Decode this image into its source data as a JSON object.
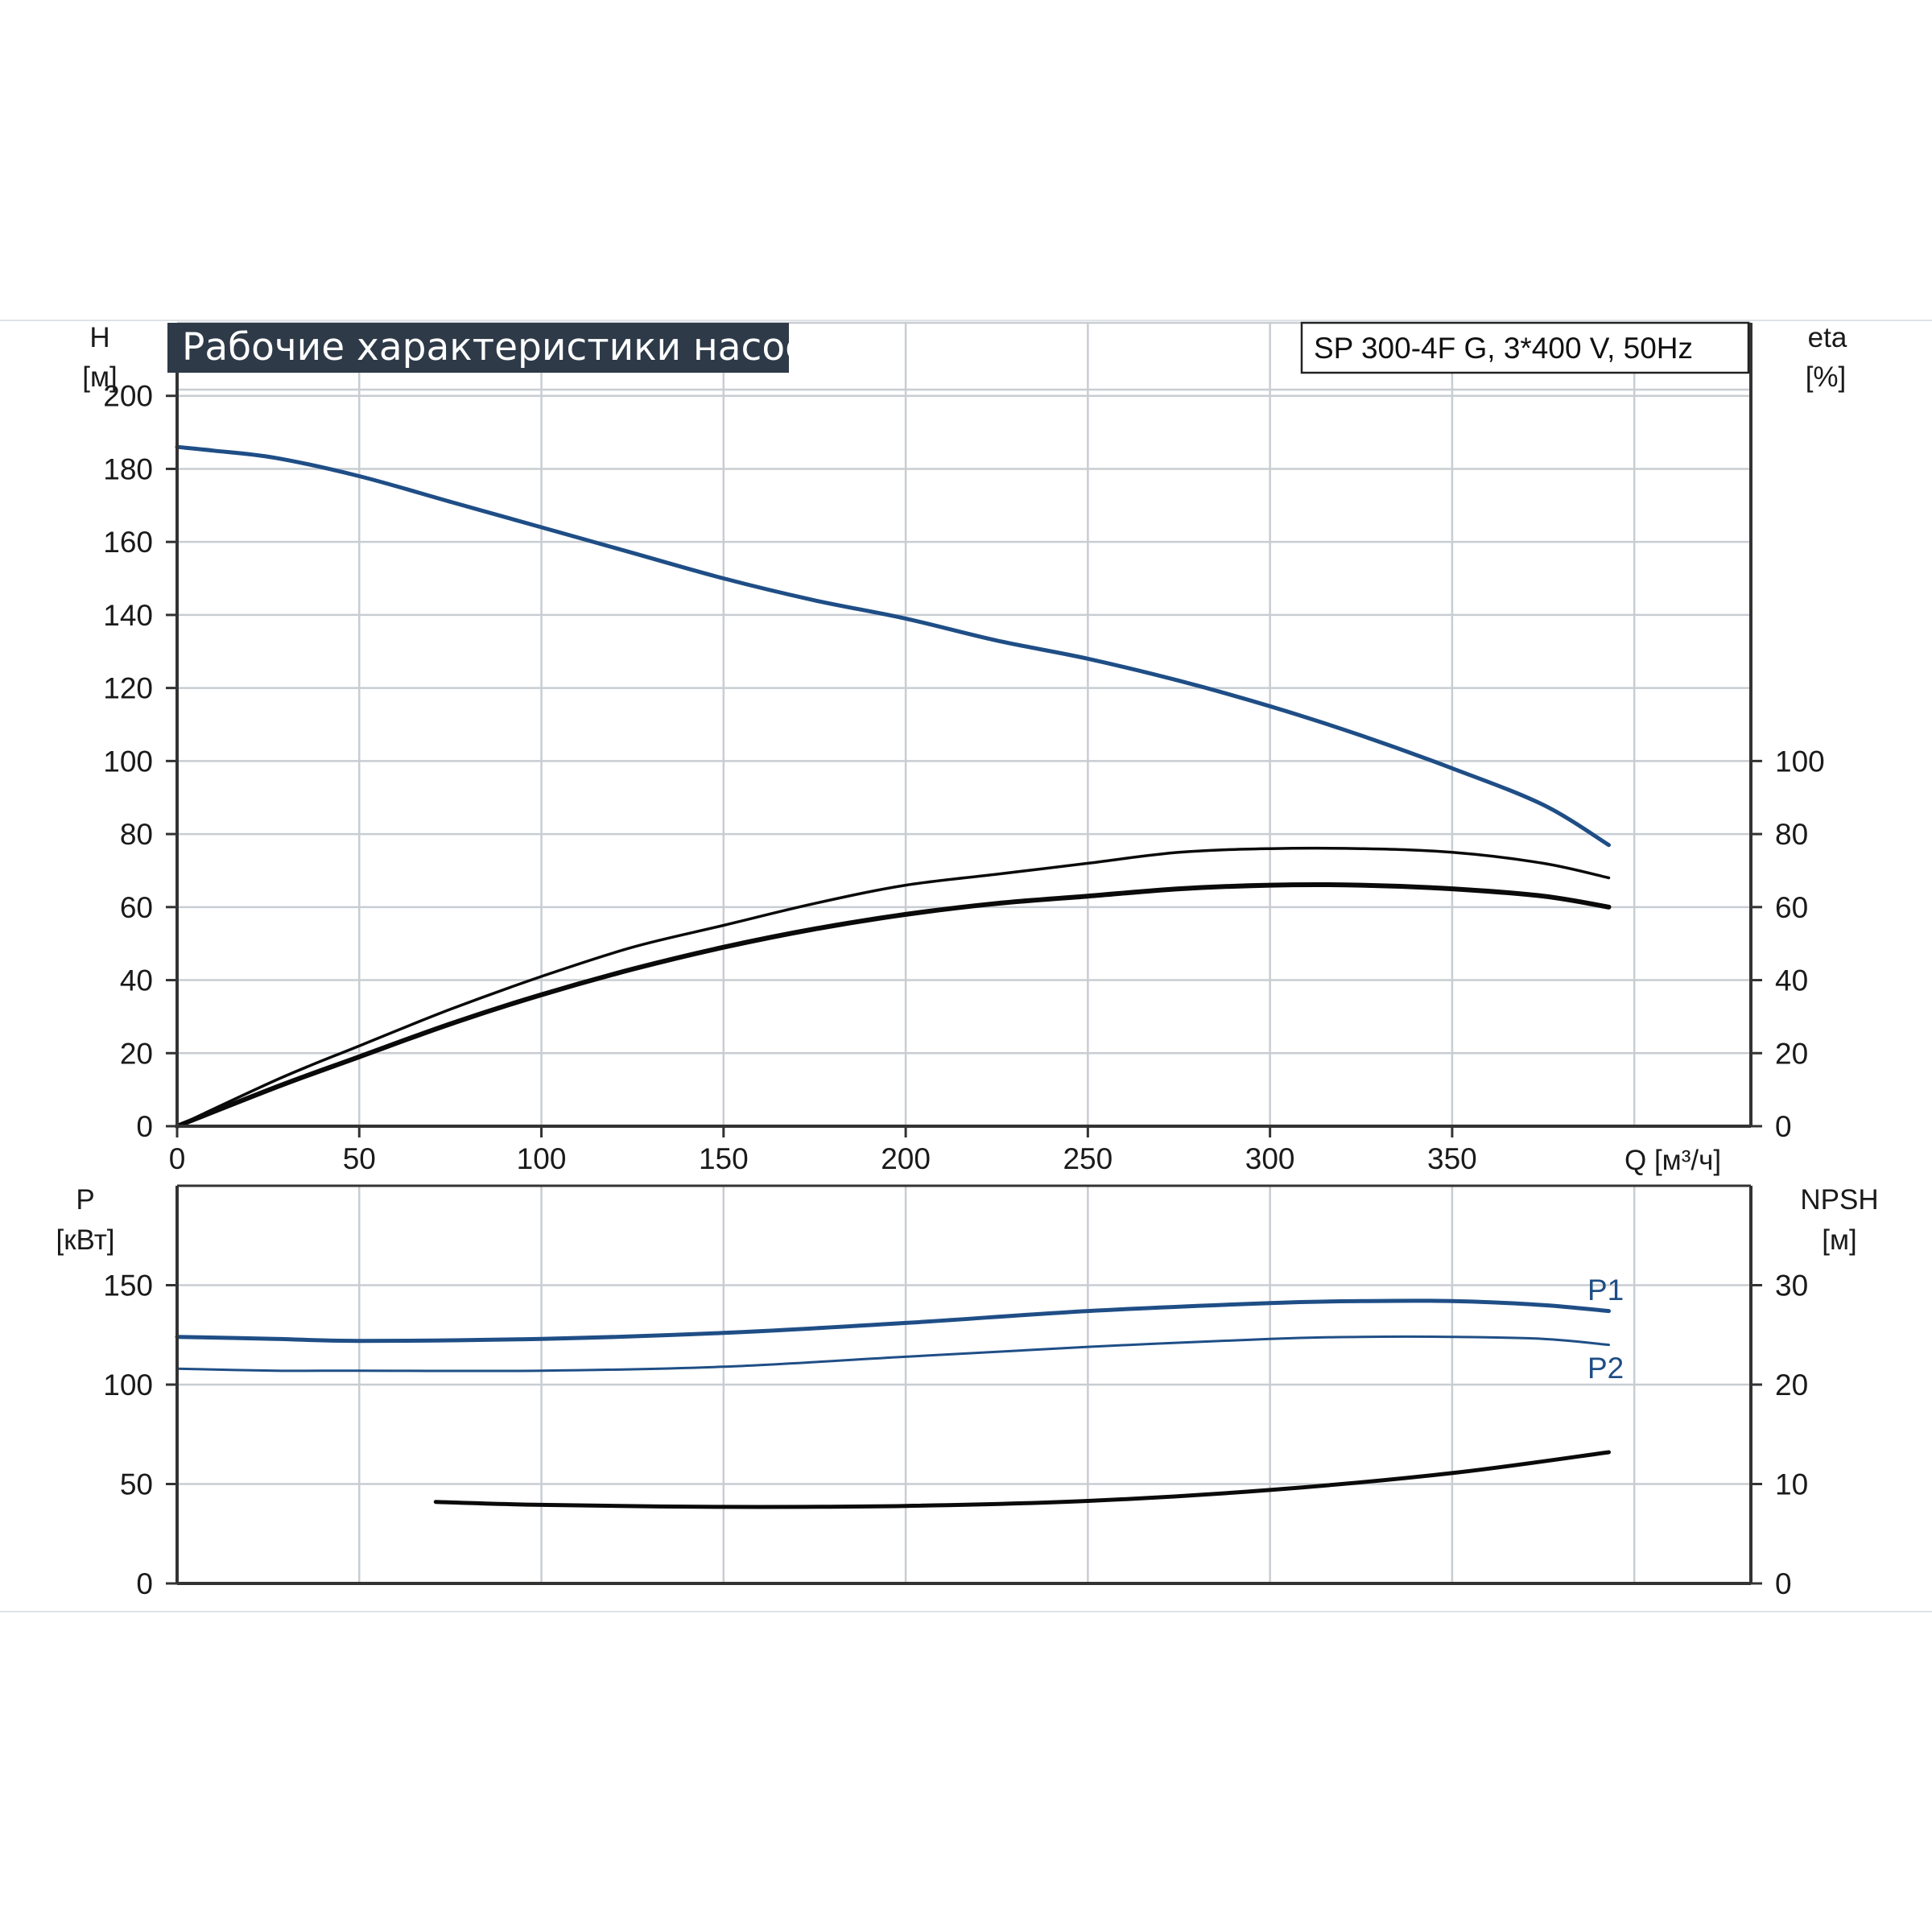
{
  "page": {
    "title": "Рабочие характеристики насоса",
    "model": "SP 300-4F G, 3*400 V, 50Hz"
  },
  "colors": {
    "blue_curve": "#1f4e86",
    "black_curve": "#0a0a0a",
    "grid": "#c8cdd2",
    "title_bg": "#2e3a48"
  },
  "chart_data": [
    {
      "name": "top",
      "type": "line",
      "xlabel": "Q [м³/ч]",
      "ylabel_left": "H",
      "ylabel_left_unit": "[м]",
      "ylabel_right": "eta",
      "ylabel_right_unit": "[%]",
      "xlim": [
        0,
        432
      ],
      "ylim": [
        0,
        220
      ],
      "x_ticks": [
        "0",
        "50",
        "100",
        "150",
        "200",
        "250",
        "300",
        "350"
      ],
      "y_ticks_left": [
        "0",
        "20",
        "40",
        "60",
        "80",
        "100",
        "120",
        "140",
        "160",
        "180",
        "200"
      ],
      "y_ticks_right": [
        "0",
        "20",
        "40",
        "60",
        "80",
        "100"
      ],
      "grid": true,
      "series": [
        {
          "key": "H",
          "color": "blue",
          "width": 5,
          "x": [
            0,
            10,
            27,
            50,
            75,
            100,
            125,
            150,
            175,
            200,
            225,
            250,
            275,
            300,
            325,
            350,
            375,
            393
          ],
          "y": [
            186,
            185,
            183,
            178,
            171,
            164,
            157,
            150,
            144,
            139,
            133,
            128,
            122,
            115,
            107,
            98,
            88,
            77
          ]
        },
        {
          "key": "eta-upper",
          "color": "black",
          "width": 3.5,
          "x": [
            0,
            28,
            50,
            75,
            100,
            125,
            150,
            175,
            200,
            225,
            250,
            275,
            300,
            325,
            350,
            375,
            393
          ],
          "y": [
            0,
            13,
            22,
            32,
            41,
            49,
            55,
            61,
            66,
            69,
            72,
            75,
            76,
            76,
            75,
            72,
            68
          ]
        },
        {
          "key": "eta-lower",
          "color": "black",
          "width": 6,
          "x": [
            0,
            28,
            50,
            75,
            100,
            125,
            150,
            175,
            200,
            225,
            250,
            275,
            300,
            325,
            350,
            375,
            393
          ],
          "y": [
            0,
            11,
            19,
            28,
            36,
            43,
            49,
            54,
            58,
            61,
            63,
            65,
            66,
            66,
            65,
            63,
            60
          ]
        }
      ]
    },
    {
      "name": "bottom",
      "type": "line",
      "ylabel_left": "P",
      "ylabel_left_unit": "[кВт]",
      "ylabel_right": "NPSH",
      "ylabel_right_unit": "[м]",
      "xlim": [
        0,
        432
      ],
      "ylim": [
        0,
        200
      ],
      "y_ticks_left": [
        "0",
        "50",
        "100",
        "150"
      ],
      "y_ticks_right": [
        "0",
        "10",
        "20",
        "30"
      ],
      "grid": true,
      "series": [
        {
          "key": "P1",
          "name": "P1",
          "color": "blue",
          "width": 5,
          "x": [
            0,
            27,
            50,
            100,
            150,
            200,
            250,
            300,
            325,
            350,
            375,
            393
          ],
          "y": [
            124,
            123,
            122,
            123,
            126,
            131,
            137,
            141,
            142,
            142,
            140,
            137
          ]
        },
        {
          "key": "P2",
          "name": "P2",
          "color": "blue",
          "width": 3,
          "x": [
            0,
            27,
            50,
            100,
            150,
            200,
            250,
            300,
            325,
            350,
            375,
            393
          ],
          "y": [
            108,
            107,
            107,
            107,
            109,
            114,
            119,
            123,
            124,
            124,
            123,
            120
          ]
        },
        {
          "key": "NPSH",
          "color": "black",
          "width": 5,
          "scale": "right",
          "x": [
            71,
            100,
            150,
            200,
            250,
            300,
            350,
            393
          ],
          "y": [
            8.2,
            7.9,
            7.7,
            7.8,
            8.3,
            9.4,
            11.1,
            13.2
          ]
        }
      ]
    }
  ]
}
